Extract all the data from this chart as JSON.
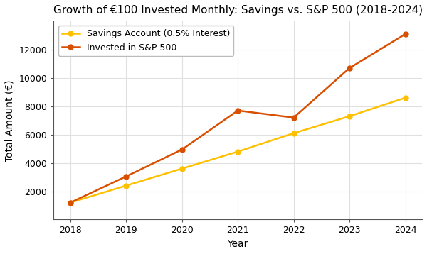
{
  "title": "Growth of €100 Invested Monthly: Savings vs. S&P 500 (2018-2024)",
  "xlabel": "Year",
  "ylabel": "Total Amount (€)",
  "years": [
    2018,
    2019,
    2020,
    2021,
    2022,
    2023,
    2024
  ],
  "savings": [
    1200,
    2400,
    3600,
    4800,
    6100,
    7300,
    8600
  ],
  "sp500": [
    1200,
    3050,
    4950,
    7700,
    7200,
    10700,
    13100
  ],
  "savings_color": "#FFC000",
  "sp500_color": "#D94F00",
  "savings_label": "Savings Account (0.5% Interest)",
  "sp500_label": "Invested in S&P 500",
  "background_color": "#FFFFFF",
  "plot_bg_color": "#FFFFFF",
  "grid_color": "#E0E0E0",
  "ylim": [
    0,
    14000
  ],
  "xlim": [
    2017.7,
    2024.3
  ],
  "title_fontsize": 11,
  "axis_label_fontsize": 10,
  "tick_fontsize": 9,
  "legend_fontsize": 9,
  "linewidth": 1.8,
  "markersize": 5
}
